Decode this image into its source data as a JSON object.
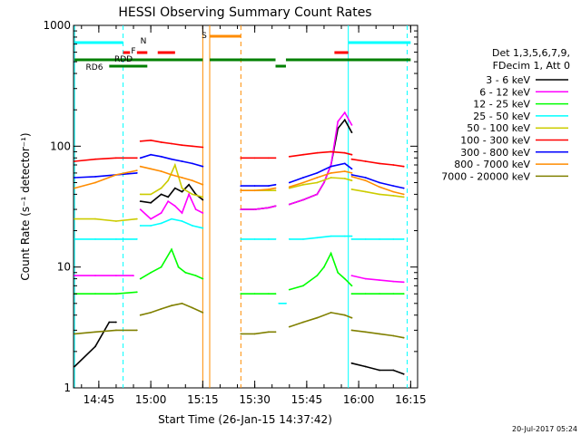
{
  "chart_data": {
    "type": "line",
    "title": "HESSI Observing Summary Count Rates",
    "xlabel": "Start Time (26-Jan-15 14:37:42)",
    "ylabel": "Count Rate (s⁻¹ detector⁻¹)",
    "yscale": "log",
    "ylim": [
      1,
      1000
    ],
    "xlim": [
      "14:37:42",
      "16:17:00"
    ],
    "grid": false,
    "legend_position": "right",
    "footer": "20-Jul-2017 05:24",
    "legend_header": [
      "Det 1,3,5,6,7,9,",
      "FDecim 1, Att 0"
    ],
    "x_ticks": [
      "14:45",
      "15:00",
      "15:15",
      "15:30",
      "15:45",
      "16:00",
      "16:15"
    ],
    "y_ticks": [
      "1",
      "10",
      "100",
      "1000"
    ],
    "series": [
      {
        "name": "3 - 6 keV",
        "color": "#000000",
        "segments": [
          {
            "x": [
              "14:38",
              "14:44",
              "14:48",
              "14:50"
            ],
            "y": [
              1.5,
              2.2,
              3.5,
              3.5
            ]
          },
          {
            "x": [
              "14:57",
              "15:00",
              "15:03",
              "15:05",
              "15:07",
              "15:09",
              "15:11",
              "15:13",
              "15:15"
            ],
            "y": [
              35,
              34,
              40,
              38,
              45,
              42,
              48,
              40,
              36
            ]
          },
          {
            "x": [
              "15:26",
              "15:30",
              "15:34",
              "15:36"
            ],
            "y": [
              30,
              30,
              31,
              32
            ]
          },
          {
            "x": [
              "15:40",
              "15:44",
              "15:48",
              "15:50",
              "15:52",
              "15:54",
              "15:56",
              "15:58"
            ],
            "y": [
              33,
              36,
              40,
              50,
              70,
              140,
              165,
              130
            ]
          },
          {
            "x": [
              "15:58",
              "16:02",
              "16:06",
              "16:10",
              "16:13"
            ],
            "y": [
              1.6,
              1.5,
              1.4,
              1.4,
              1.3
            ]
          }
        ]
      },
      {
        "name": "6 - 12 keV",
        "color": "#ff00ff",
        "segments": [
          {
            "x": [
              "14:38",
              "14:44",
              "14:50",
              "14:55"
            ],
            "y": [
              8.5,
              8.5,
              8.5,
              8.5
            ]
          },
          {
            "x": [
              "14:57",
              "15:00",
              "15:03",
              "15:05",
              "15:07",
              "15:09",
              "15:11",
              "15:13",
              "15:15"
            ],
            "y": [
              30,
              25,
              28,
              35,
              32,
              28,
              40,
              30,
              28
            ]
          },
          {
            "x": [
              "15:26",
              "15:30",
              "15:34",
              "15:36"
            ],
            "y": [
              30,
              30,
              31,
              32
            ]
          },
          {
            "x": [
              "15:40",
              "15:44",
              "15:48",
              "15:50",
              "15:52",
              "15:54",
              "15:56",
              "15:58"
            ],
            "y": [
              33,
              36,
              40,
              50,
              70,
              160,
              190,
              150
            ]
          },
          {
            "x": [
              "15:58",
              "16:02",
              "16:06",
              "16:10",
              "16:13"
            ],
            "y": [
              8.5,
              8,
              7.8,
              7.6,
              7.5
            ]
          }
        ]
      },
      {
        "name": "12 - 25 keV",
        "color": "#00ff00",
        "segments": [
          {
            "x": [
              "14:38",
              "14:44",
              "14:50",
              "14:56"
            ],
            "y": [
              6,
              6,
              6,
              6.2
            ]
          },
          {
            "x": [
              "14:57",
              "15:00",
              "15:03",
              "15:06",
              "15:08",
              "15:10",
              "15:13",
              "15:15"
            ],
            "y": [
              8,
              9,
              10,
              14,
              10,
              9,
              8.5,
              8
            ]
          },
          {
            "x": [
              "15:26",
              "15:30",
              "15:34",
              "15:36"
            ],
            "y": [
              6,
              6,
              6,
              6
            ]
          },
          {
            "x": [
              "15:40",
              "15:44",
              "15:48",
              "15:50",
              "15:52",
              "15:54",
              "15:56",
              "15:58"
            ],
            "y": [
              6.5,
              7,
              8.5,
              10,
              13,
              9,
              8,
              7
            ]
          },
          {
            "x": [
              "15:58",
              "16:02",
              "16:06",
              "16:10",
              "16:13"
            ],
            "y": [
              6,
              6,
              6,
              6,
              6
            ]
          }
        ]
      },
      {
        "name": "25 - 50 keV",
        "color": "#00ffff",
        "segments": [
          {
            "x": [
              "14:38",
              "14:44",
              "14:50",
              "14:56"
            ],
            "y": [
              17,
              17,
              17,
              17
            ]
          },
          {
            "x": [
              "14:57",
              "15:00",
              "15:03",
              "15:06",
              "15:09",
              "15:12",
              "15:15"
            ],
            "y": [
              22,
              22,
              23,
              25,
              24,
              22,
              21
            ]
          },
          {
            "x": [
              "15:26",
              "15:30",
              "15:34",
              "15:36"
            ],
            "y": [
              17,
              17,
              17,
              17
            ]
          },
          {
            "x": [
              "15:37",
              "15:39"
            ],
            "y": [
              5,
              5
            ]
          },
          {
            "x": [
              "15:40",
              "15:44",
              "15:48",
              "15:52",
              "15:56",
              "15:58"
            ],
            "y": [
              17,
              17,
              17.5,
              18,
              18,
              18
            ]
          },
          {
            "x": [
              "15:58",
              "16:02",
              "16:06",
              "16:10",
              "16:13"
            ],
            "y": [
              17,
              17,
              17,
              17,
              17
            ]
          }
        ]
      },
      {
        "name": "50 - 100 keV",
        "color": "#cccc00",
        "segments": [
          {
            "x": [
              "14:38",
              "14:44",
              "14:50",
              "14:56"
            ],
            "y": [
              25,
              25,
              24,
              25
            ]
          },
          {
            "x": [
              "14:57",
              "15:00",
              "15:03",
              "15:05",
              "15:07",
              "15:09",
              "15:12",
              "15:15"
            ],
            "y": [
              40,
              40,
              45,
              52,
              70,
              45,
              40,
              38
            ]
          },
          {
            "x": [
              "15:26",
              "15:30",
              "15:34",
              "15:36"
            ],
            "y": [
              43,
              43,
              43,
              43
            ]
          },
          {
            "x": [
              "15:40",
              "15:44",
              "15:48",
              "15:52",
              "15:56",
              "15:58"
            ],
            "y": [
              45,
              48,
              50,
              55,
              54,
              52
            ]
          },
          {
            "x": [
              "15:58",
              "16:02",
              "16:06",
              "16:10",
              "16:13"
            ],
            "y": [
              44,
              42,
              40,
              39,
              38
            ]
          }
        ]
      },
      {
        "name": "100 - 300 keV",
        "color": "#ff0000",
        "segments": [
          {
            "x": [
              "14:38",
              "14:44",
              "14:50",
              "14:56"
            ],
            "y": [
              75,
              78,
              80,
              80
            ]
          },
          {
            "x": [
              "14:57",
              "15:00",
              "15:03",
              "15:06",
              "15:09",
              "15:12",
              "15:15"
            ],
            "y": [
              110,
              112,
              108,
              105,
              102,
              100,
              98
            ]
          },
          {
            "x": [
              "15:26",
              "15:30",
              "15:34",
              "15:36"
            ],
            "y": [
              80,
              80,
              80,
              80
            ]
          },
          {
            "x": [
              "15:40",
              "15:44",
              "15:48",
              "15:52",
              "15:56",
              "15:58"
            ],
            "y": [
              82,
              85,
              88,
              90,
              88,
              85
            ]
          },
          {
            "x": [
              "15:58",
              "16:02",
              "16:06",
              "16:10",
              "16:13"
            ],
            "y": [
              78,
              75,
              72,
              70,
              68
            ]
          }
        ]
      },
      {
        "name": "300 - 800 keV",
        "color": "#0000ff",
        "segments": [
          {
            "x": [
              "14:38",
              "14:44",
              "14:50",
              "14:56"
            ],
            "y": [
              55,
              56,
              58,
              60
            ]
          },
          {
            "x": [
              "14:57",
              "15:00",
              "15:03",
              "15:06",
              "15:09",
              "15:12",
              "15:15"
            ],
            "y": [
              80,
              85,
              82,
              78,
              75,
              72,
              68
            ]
          },
          {
            "x": [
              "15:26",
              "15:30",
              "15:34",
              "15:36"
            ],
            "y": [
              47,
              47,
              47,
              48
            ]
          },
          {
            "x": [
              "15:40",
              "15:44",
              "15:48",
              "15:52",
              "15:56",
              "15:58"
            ],
            "y": [
              50,
              55,
              60,
              68,
              72,
              65
            ]
          },
          {
            "x": [
              "15:58",
              "16:02",
              "16:06",
              "16:10",
              "16:13"
            ],
            "y": [
              58,
              55,
              50,
              47,
              45
            ]
          }
        ]
      },
      {
        "name": "800 - 7000 keV",
        "color": "#ff8c00",
        "segments": [
          {
            "x": [
              "14:38",
              "14:44",
              "14:50",
              "14:56"
            ],
            "y": [
              45,
              50,
              58,
              63
            ]
          },
          {
            "x": [
              "14:57",
              "15:00",
              "15:03",
              "15:06",
              "15:09",
              "15:12",
              "15:15"
            ],
            "y": [
              68,
              65,
              62,
              58,
              55,
              52,
              48
            ]
          },
          {
            "x": [
              "15:26",
              "15:30",
              "15:34",
              "15:36"
            ],
            "y": [
              43,
              43,
              44,
              45
            ]
          },
          {
            "x": [
              "15:40",
              "15:44",
              "15:48",
              "15:52",
              "15:56",
              "15:58"
            ],
            "y": [
              46,
              50,
              55,
              60,
              62,
              60
            ]
          },
          {
            "x": [
              "15:58",
              "16:02",
              "16:06",
              "16:10",
              "16:13"
            ],
            "y": [
              56,
              52,
              46,
              42,
              40
            ]
          }
        ]
      },
      {
        "name": "7000 - 20000 keV",
        "color": "#808000",
        "segments": [
          {
            "x": [
              "14:38",
              "14:44",
              "14:50",
              "14:56"
            ],
            "y": [
              2.8,
              2.9,
              3.0,
              3.0
            ]
          },
          {
            "x": [
              "14:57",
              "15:00",
              "15:03",
              "15:06",
              "15:09",
              "15:12",
              "15:15"
            ],
            "y": [
              4.0,
              4.2,
              4.5,
              4.8,
              5.0,
              4.6,
              4.2
            ]
          },
          {
            "x": [
              "15:26",
              "15:30",
              "15:34",
              "15:36"
            ],
            "y": [
              2.8,
              2.8,
              2.9,
              2.9
            ]
          },
          {
            "x": [
              "15:40",
              "15:44",
              "15:48",
              "15:52",
              "15:56",
              "15:58"
            ],
            "y": [
              3.2,
              3.5,
              3.8,
              4.2,
              4.0,
              3.8
            ]
          },
          {
            "x": [
              "15:58",
              "16:02",
              "16:06",
              "16:10",
              "16:13"
            ],
            "y": [
              3.0,
              2.9,
              2.8,
              2.7,
              2.6
            ]
          }
        ]
      }
    ],
    "vertical_markers": [
      {
        "x": "14:38",
        "color": "#00ffff",
        "style": "solid"
      },
      {
        "x": "14:52",
        "color": "#00ffff",
        "style": "dashed"
      },
      {
        "x": "15:15",
        "color": "#ff8c00",
        "style": "solid"
      },
      {
        "x": "15:17",
        "color": "#ff8c00",
        "style": "solid"
      },
      {
        "x": "15:26",
        "color": "#ff8c00",
        "style": "dashed"
      },
      {
        "x": "15:57",
        "color": "#00ffff",
        "style": "solid"
      },
      {
        "x": "16:14",
        "color": "#00ffff",
        "style": "dashed"
      }
    ],
    "flag_bars": [
      {
        "label": "N",
        "color": "#00ffff",
        "spans": [
          [
            "14:38",
            "14:52"
          ],
          [
            "15:57",
            "16:15"
          ]
        ]
      },
      {
        "label": "F",
        "color": "#ff0000",
        "spans": [
          [
            "14:52",
            "14:54"
          ],
          [
            "14:56",
            "14:59"
          ],
          [
            "15:02",
            "15:07"
          ],
          [
            "15:53",
            "15:57"
          ]
        ]
      },
      {
        "label": "S",
        "color": "#ff8c00",
        "spans": [
          [
            "15:17",
            "15:26"
          ]
        ]
      },
      {
        "label": "RDD",
        "color": "#008000",
        "spans": [
          [
            "14:38",
            "15:15"
          ],
          [
            "15:17",
            "15:36"
          ],
          [
            "15:39",
            "16:15"
          ]
        ]
      },
      {
        "label": "RD6",
        "color": "#008000",
        "spans": [
          [
            "14:48",
            "14:59"
          ],
          [
            "15:36",
            "15:39"
          ]
        ]
      }
    ]
  }
}
